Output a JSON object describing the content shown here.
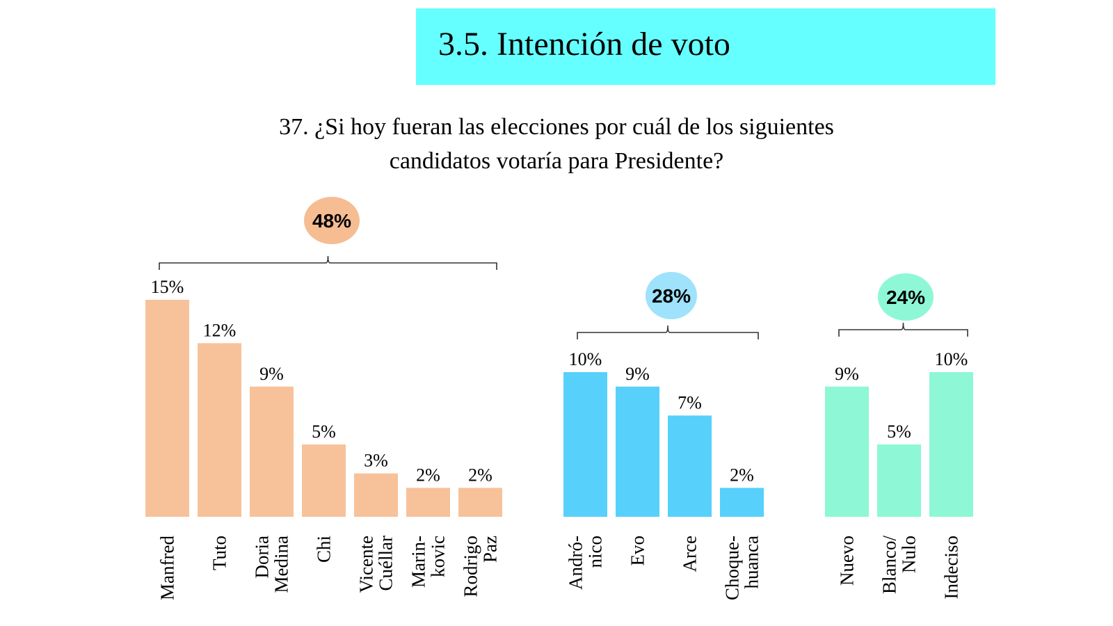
{
  "header": {
    "title": "3.5. Intención de voto"
  },
  "question": {
    "line1": "37. ¿Si hoy fueran las elecciones por cuál de los siguientes",
    "line2": "candidatos votaría para Presidente?"
  },
  "chart_data": {
    "type": "bar",
    "title": "37. ¿Si hoy fueran las elecciones por cuál de los siguientes candidatos votaría para Presidente?",
    "xlabel": "",
    "ylabel": "",
    "ylim": [
      0,
      15
    ],
    "grid": false,
    "legend": "none",
    "groups": [
      {
        "name": "group-1",
        "total_label": "48%",
        "color": "#f7c29a",
        "bubble_color": "#f6bc92",
        "categories": [
          [
            "Manfred"
          ],
          [
            "Tuto"
          ],
          [
            "Doria",
            "Medina"
          ],
          [
            "Chi"
          ],
          [
            "Vicente",
            "Cuéllar"
          ],
          [
            "Marin-",
            "kovic"
          ],
          [
            "Rodrigo",
            "Paz"
          ]
        ],
        "values": [
          15,
          12,
          9,
          5,
          3,
          2,
          2
        ],
        "labels": [
          "15%",
          "12%",
          "9%",
          "5%",
          "3%",
          "2%",
          "2%"
        ]
      },
      {
        "name": "group-2",
        "total_label": "28%",
        "color": "#57d0fb",
        "bubble_color": "#9ee2fb",
        "categories": [
          [
            "Andró-",
            "nico"
          ],
          [
            "Evo"
          ],
          [
            "Arce"
          ],
          [
            "Choque-",
            "huanca"
          ]
        ],
        "values": [
          10,
          9,
          7,
          2
        ],
        "labels": [
          "10%",
          "9%",
          "7%",
          "2%"
        ]
      },
      {
        "name": "group-3",
        "total_label": "24%",
        "color": "#8ef7d6",
        "bubble_color": "#8ef7d6",
        "categories": [
          [
            "Nuevo"
          ],
          [
            "Blanco/",
            "Nulo"
          ],
          [
            "Indeciso"
          ]
        ],
        "values": [
          9,
          5,
          10
        ],
        "labels": [
          "9%",
          "5%",
          "10%"
        ]
      }
    ]
  }
}
